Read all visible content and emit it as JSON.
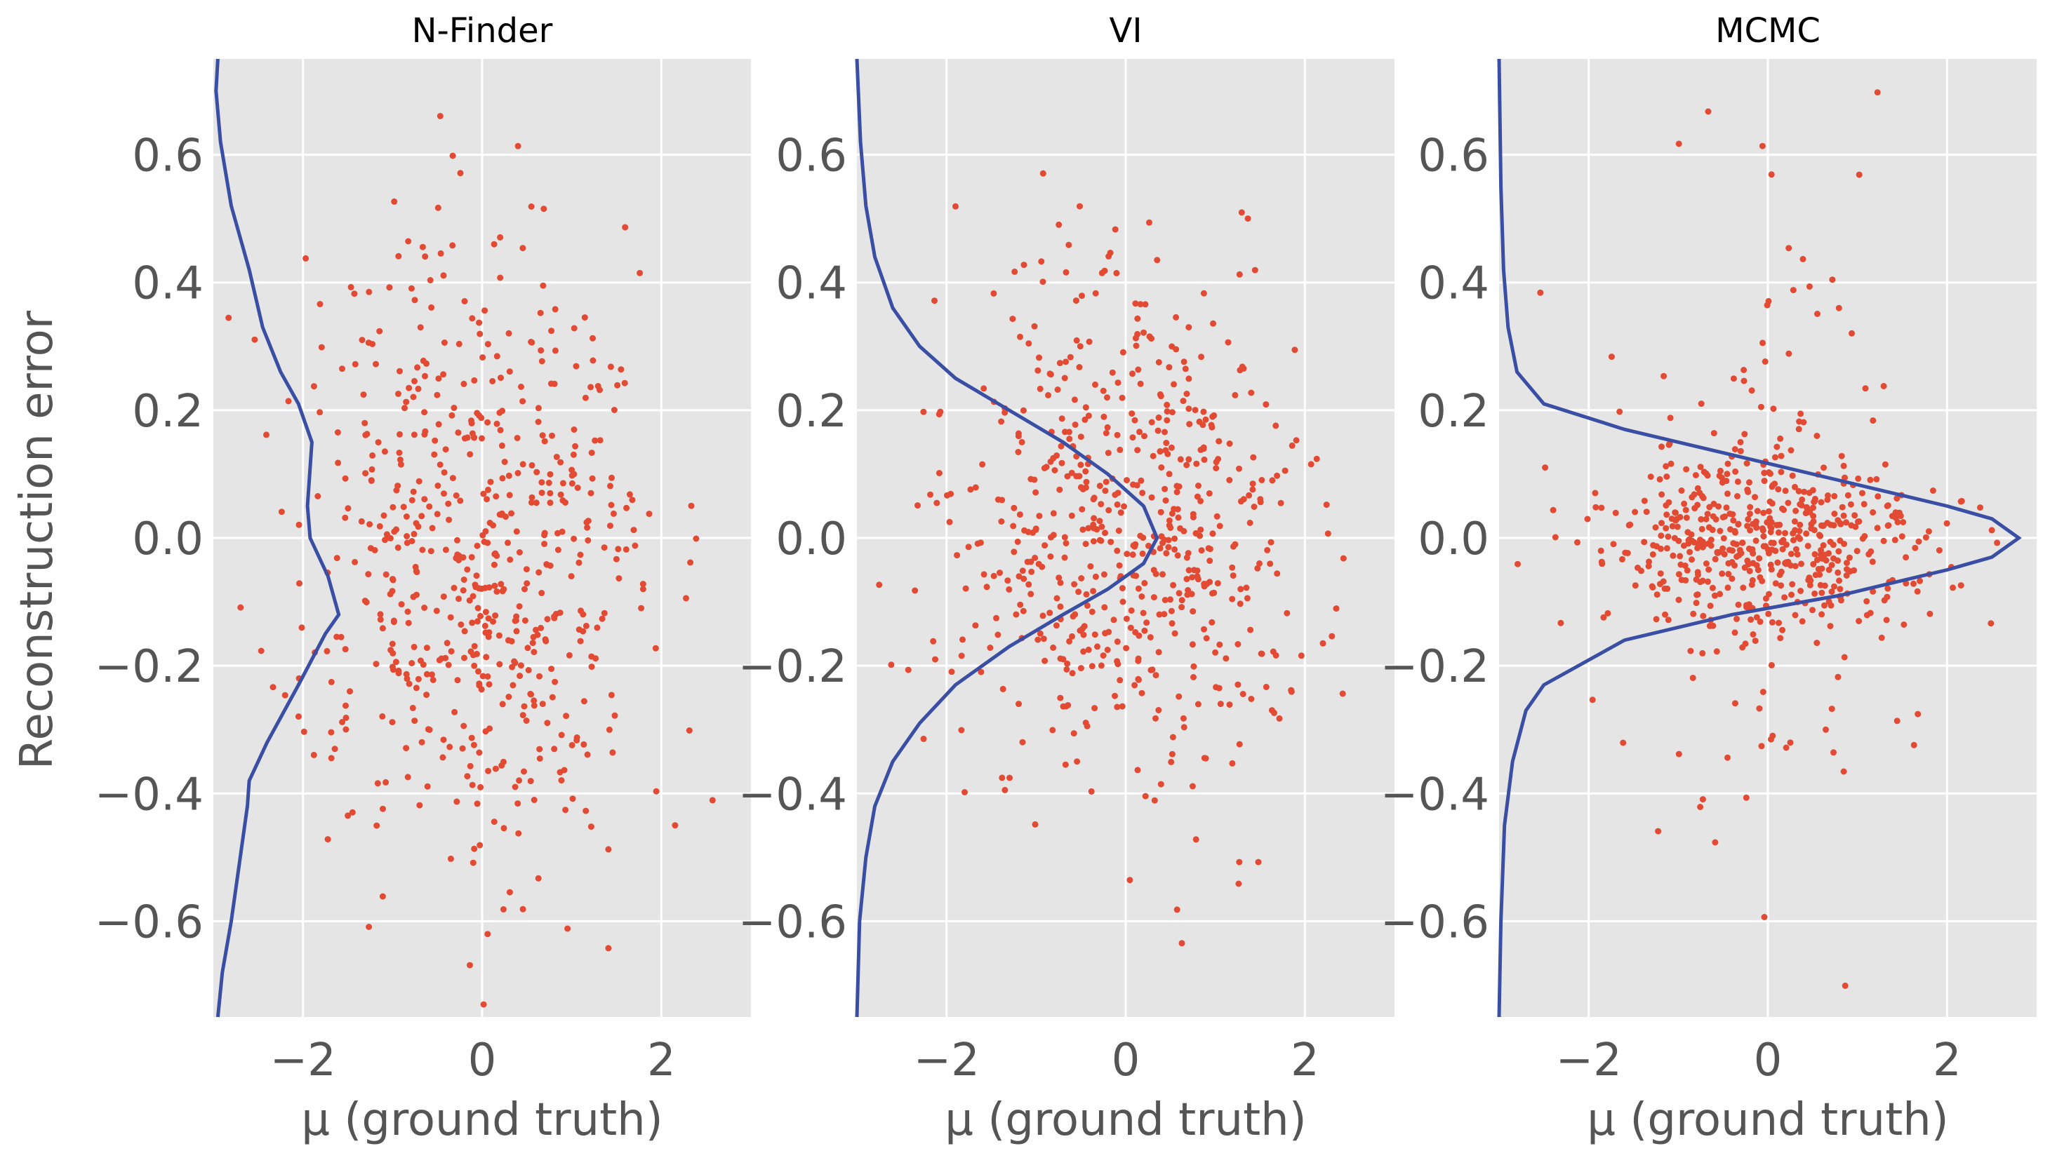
{
  "colors": {
    "points": "#e24a33",
    "curve": "#3a4fa3",
    "panel_bg": "#e5e5e5",
    "grid": "#ffffff",
    "tick_text": "#555555"
  },
  "figure": {
    "ylabel": "Reconstruction error"
  },
  "chart_data": [
    {
      "type": "scatter",
      "title": "N-Finder",
      "xlabel": "μ (ground truth)",
      "ylabel": "Reconstruction error",
      "xlim": [
        -3,
        3
      ],
      "ylim": [
        -0.75,
        0.75
      ],
      "xticks": [
        -2,
        0,
        2
      ],
      "yticks": [
        -0.6,
        -0.4,
        -0.2,
        0.0,
        0.2,
        0.4,
        0.6
      ],
      "xtick_labels": [
        "−2",
        "0",
        "2"
      ],
      "ytick_labels": [
        "−0.6",
        "−0.4",
        "−0.2",
        "0.0",
        "0.2",
        "0.4",
        "0.6"
      ],
      "grid": true,
      "n_points": 600,
      "point_seed": 11,
      "point_sd_x": 1.0,
      "point_mode_y": [
        0.1,
        -0.15
      ],
      "point_sd_y": 0.21,
      "density_curve": [
        [
          -2.95,
          -0.75
        ],
        [
          -2.9,
          -0.68
        ],
        [
          -2.8,
          -0.6
        ],
        [
          -2.7,
          -0.5
        ],
        [
          -2.62,
          -0.42
        ],
        [
          -2.6,
          -0.38
        ],
        [
          -2.4,
          -0.32
        ],
        [
          -2.05,
          -0.23
        ],
        [
          -1.75,
          -0.15
        ],
        [
          -1.6,
          -0.12
        ],
        [
          -1.72,
          -0.06
        ],
        [
          -1.92,
          0.0
        ],
        [
          -1.95,
          0.05
        ],
        [
          -1.9,
          0.15
        ],
        [
          -2.05,
          0.21
        ],
        [
          -2.25,
          0.26
        ],
        [
          -2.45,
          0.33
        ],
        [
          -2.6,
          0.42
        ],
        [
          -2.8,
          0.52
        ],
        [
          -2.92,
          0.62
        ],
        [
          -2.97,
          0.7
        ],
        [
          -2.95,
          0.75
        ]
      ]
    },
    {
      "type": "scatter",
      "title": "VI",
      "xlabel": "μ (ground truth)",
      "ylabel": "",
      "xlim": [
        -3,
        3
      ],
      "ylim": [
        -0.75,
        0.75
      ],
      "xticks": [
        -2,
        0,
        2
      ],
      "yticks": [
        -0.6,
        -0.4,
        -0.2,
        0.0,
        0.2,
        0.4,
        0.6
      ],
      "xtick_labels": [
        "−2",
        "0",
        "2"
      ],
      "ytick_labels": [
        "−0.6",
        "−0.4",
        "−0.2",
        "0.0",
        "0.2",
        "0.4",
        "0.6"
      ],
      "grid": true,
      "n_points": 600,
      "point_seed": 23,
      "point_sd_x": 0.95,
      "point_mode_y": [
        0.0,
        0.0
      ],
      "point_sd_y": 0.2,
      "density_curve": [
        [
          -3.0,
          -0.75
        ],
        [
          -2.97,
          -0.6
        ],
        [
          -2.9,
          -0.5
        ],
        [
          -2.8,
          -0.42
        ],
        [
          -2.6,
          -0.35
        ],
        [
          -2.3,
          -0.29
        ],
        [
          -1.9,
          -0.23
        ],
        [
          -1.3,
          -0.17
        ],
        [
          -0.7,
          -0.12
        ],
        [
          -0.2,
          -0.08
        ],
        [
          0.2,
          -0.04
        ],
        [
          0.35,
          0.0
        ],
        [
          0.2,
          0.05
        ],
        [
          -0.2,
          0.1
        ],
        [
          -0.7,
          0.15
        ],
        [
          -1.3,
          0.2
        ],
        [
          -1.9,
          0.25
        ],
        [
          -2.3,
          0.3
        ],
        [
          -2.6,
          0.36
        ],
        [
          -2.8,
          0.44
        ],
        [
          -2.9,
          0.52
        ],
        [
          -2.96,
          0.62
        ],
        [
          -3.0,
          0.75
        ]
      ]
    },
    {
      "type": "scatter",
      "title": "MCMC",
      "xlabel": "μ (ground truth)",
      "ylabel": "",
      "xlim": [
        -3,
        3
      ],
      "ylim": [
        -0.75,
        0.75
      ],
      "xticks": [
        -2,
        0,
        2
      ],
      "yticks": [
        -0.6,
        -0.4,
        -0.2,
        0.0,
        0.2,
        0.4,
        0.6
      ],
      "xtick_labels": [
        "−2",
        "0",
        "2"
      ],
      "ytick_labels": [
        "−0.6",
        "−0.4",
        "−0.2",
        "0.0",
        "0.2",
        "0.4",
        "0.6"
      ],
      "grid": true,
      "n_points": 600,
      "point_seed": 37,
      "point_sd_x": 0.9,
      "point_mode_y": [
        0.0,
        0.0
      ],
      "point_sd_y": 0.06,
      "point_outlier_fraction": 0.28,
      "point_outlier_sd_y": 0.25,
      "density_curve": [
        [
          -3.0,
          -0.75
        ],
        [
          -2.98,
          -0.6
        ],
        [
          -2.94,
          -0.45
        ],
        [
          -2.85,
          -0.35
        ],
        [
          -2.7,
          -0.27
        ],
        [
          -2.5,
          -0.23
        ],
        [
          -1.6,
          -0.16
        ],
        [
          -0.4,
          -0.12
        ],
        [
          0.8,
          -0.09
        ],
        [
          2.0,
          -0.05
        ],
        [
          2.5,
          -0.03
        ],
        [
          2.8,
          0.0
        ],
        [
          2.5,
          0.03
        ],
        [
          2.0,
          0.05
        ],
        [
          0.8,
          0.09
        ],
        [
          -0.4,
          0.13
        ],
        [
          -1.6,
          0.17
        ],
        [
          -2.5,
          0.21
        ],
        [
          -2.8,
          0.26
        ],
        [
          -2.9,
          0.33
        ],
        [
          -2.95,
          0.42
        ],
        [
          -2.98,
          0.55
        ],
        [
          -3.0,
          0.75
        ]
      ]
    }
  ]
}
